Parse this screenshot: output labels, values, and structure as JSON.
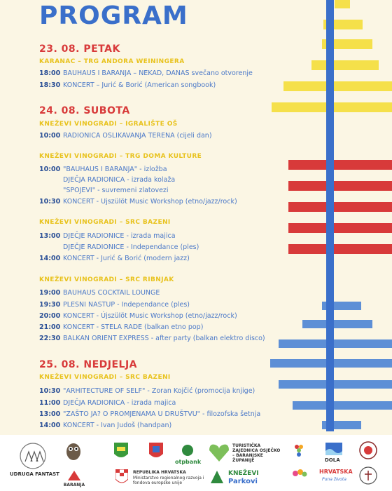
{
  "title": "PROGRAM",
  "days": [
    {
      "label": "23. 08.  PETAK",
      "venues": [
        {
          "name": "KARANAC – TRG ANDORA WEININGERA",
          "rows": [
            {
              "time": "18:00",
              "text": "BAUHAUS I BARANJA – NEKAD, DANAS svečano otvorenje"
            },
            {
              "time": "18:30",
              "text": "KONCERT – Jurić & Borić (American songbook)"
            }
          ]
        }
      ]
    },
    {
      "label": "24. 08.  SUBOTA",
      "venues": [
        {
          "name": "KNEŽEVI VINOGRADI – IGRALIŠTE OŠ",
          "rows": [
            {
              "time": "10:00",
              "text": "RADIONICA OSLIKAVANJA TERENA (cijeli dan)"
            }
          ]
        },
        {
          "name": "KNEŽEVI VINOGRADI – TRG DOMA KULTURE",
          "rows": [
            {
              "time": "10:00",
              "text": "\"BAUHAUS I BARANJA\" - izložba"
            },
            {
              "time": "",
              "text": "DJEČJA RADIONICA - izrada kolaža"
            },
            {
              "time": "",
              "text": "\"SPOJEVI\" - suvremeni zlatovezi"
            },
            {
              "time": "10:30",
              "text": "KONCERT - Ujszülöt Music Workshop (etno/jazz/rock)"
            }
          ]
        },
        {
          "name": "KNEŽEVI VINOGRADI – SRC BAZENI",
          "rows": [
            {
              "time": "13:00",
              "text": "DJEČJE RADIONICE - izrada majica"
            },
            {
              "time": "",
              "text": "DJEČJE RADIONICE - Independance (ples)"
            },
            {
              "time": "14:00",
              "text": "KONCERT - Jurić & Borić (modern jazz)"
            }
          ]
        },
        {
          "name": "KNEŽEVI VINOGRADI – SRC RIBNJAK",
          "rows": [
            {
              "time": "19:00",
              "text": "BAUHAUS COCKTAIL LOUNGE"
            },
            {
              "time": "19:30",
              "text": "PLESNI NASTUP - Independance (ples)"
            },
            {
              "time": "20:00",
              "text": "KONCERT - Újszülöt Music Workshop (etno/jazz/rock)"
            },
            {
              "time": "21:00",
              "text": "KONCERT - STELA RADE (balkan etno pop)"
            },
            {
              "time": "22:30",
              "text": "BALKAN ORIENT EXPRESS - after party (balkan elektro disco)"
            }
          ]
        }
      ]
    },
    {
      "label": "25. 08.  NEDJELJA",
      "venues": [
        {
          "name": "KNEŽEVI VINOGRADI – SRC BAZENI",
          "rows": [
            {
              "time": "10:30",
              "text": "\"ARHITECTURE OF SELF\" - Zoran Kojčić (promocija knjige)"
            },
            {
              "time": "11:00",
              "text": "DJEČJA RADIONICA - izrada majica"
            },
            {
              "time": "13:00",
              "text": "\"ZAŠTO JA? O PROMJENAMA U DRUŠTVU\" - filozofska šetnja"
            },
            {
              "time": "14:00",
              "text": "KONCERT - Ivan Judoš (handpan)"
            }
          ]
        }
      ]
    }
  ],
  "footer": {
    "udruga": "UDRUGA FANTAST",
    "baranja": "BARANJA",
    "otp": "otpbank",
    "tz": "TURISTIČKA ZAJEDNICA OSJEČKO – BARANJSKE ŽUPANIJE",
    "rh1": "REPUBLIKA HRVATSKA",
    "rh2": "Ministarstvo regionalnog razvoja i fondova europske unije",
    "parkovi1": "KNEŽEVI",
    "parkovi2": "Parkovi",
    "dola": "DOLA",
    "hrvatska": "HRVATSKA",
    "puna": "Puna života"
  }
}
